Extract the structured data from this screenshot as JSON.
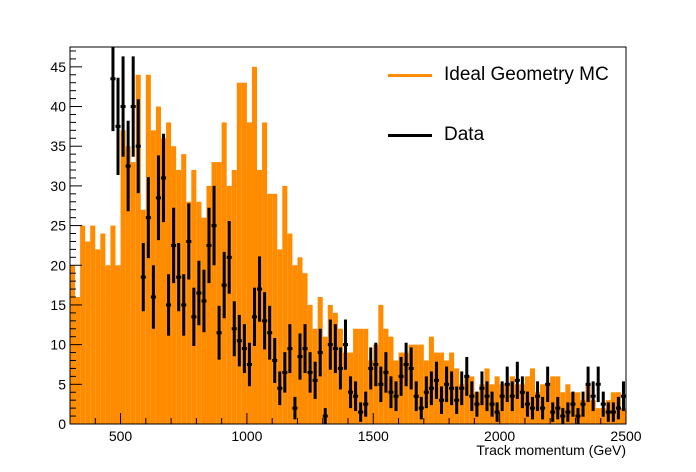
{
  "chart_data": {
    "type": "bar",
    "title": "",
    "xlabel": "Track momentum (GeV)",
    "ylabel": "",
    "xlim": [
      300,
      2500
    ],
    "ylim": [
      0,
      47.5
    ],
    "bin_width": 20,
    "x_ticks": [
      500,
      1000,
      1500,
      2000,
      2500
    ],
    "y_ticks": [
      0,
      5,
      10,
      15,
      20,
      25,
      30,
      35,
      40,
      45
    ],
    "grid": false,
    "legend_position": "top-right",
    "series": [
      {
        "name": "Ideal Geometry MC",
        "kind": "histogram",
        "color": "#ff8c00",
        "bin_edges_start": 300,
        "values": [
          20,
          16,
          25,
          23,
          25,
          22,
          24,
          20,
          25,
          20,
          37,
          35,
          33,
          44,
          27,
          44,
          37,
          40,
          36,
          38,
          35,
          32,
          34,
          28,
          32,
          28,
          26,
          30,
          33,
          33,
          38,
          30,
          32,
          43,
          43,
          38,
          45,
          32,
          38,
          29,
          29,
          22,
          30,
          24,
          20,
          21,
          19,
          15,
          12,
          16,
          11,
          15,
          14,
          12,
          9,
          9,
          12,
          12,
          12,
          8,
          10,
          15,
          12,
          11,
          8,
          9,
          9,
          10,
          10,
          10,
          8,
          11,
          9,
          9,
          8,
          9,
          7,
          5,
          6,
          6,
          4,
          5,
          7,
          5,
          6,
          5,
          5,
          6,
          5,
          5,
          6,
          7,
          4,
          5,
          5,
          6,
          6,
          4,
          5,
          4,
          4,
          3,
          5,
          3,
          2,
          2,
          3,
          4,
          4,
          2,
          1,
          1
        ]
      },
      {
        "name": "Data",
        "kind": "points-with-errors",
        "color": "#000000",
        "points": [
          {
            "x": 470,
            "y": 43.5
          },
          {
            "x": 490,
            "y": 37.5
          },
          {
            "x": 510,
            "y": 40
          },
          {
            "x": 530,
            "y": 32.5
          },
          {
            "x": 550,
            "y": 40
          },
          {
            "x": 570,
            "y": 35
          },
          {
            "x": 590,
            "y": 18.5
          },
          {
            "x": 610,
            "y": 26
          },
          {
            "x": 630,
            "y": 16
          },
          {
            "x": 650,
            "y": 28.5
          },
          {
            "x": 670,
            "y": 31
          },
          {
            "x": 690,
            "y": 15
          },
          {
            "x": 710,
            "y": 22.5
          },
          {
            "x": 730,
            "y": 18.5
          },
          {
            "x": 750,
            "y": 15
          },
          {
            "x": 770,
            "y": 23
          },
          {
            "x": 790,
            "y": 13.5
          },
          {
            "x": 810,
            "y": 16.5
          },
          {
            "x": 830,
            "y": 15.5
          },
          {
            "x": 850,
            "y": 22.5
          },
          {
            "x": 870,
            "y": 25
          },
          {
            "x": 890,
            "y": 11.5
          },
          {
            "x": 910,
            "y": 17.5
          },
          {
            "x": 930,
            "y": 21
          },
          {
            "x": 950,
            "y": 12
          },
          {
            "x": 970,
            "y": 10.5
          },
          {
            "x": 990,
            "y": 9.5
          },
          {
            "x": 1010,
            "y": 7.5
          },
          {
            "x": 1030,
            "y": 13.5
          },
          {
            "x": 1050,
            "y": 17
          },
          {
            "x": 1070,
            "y": 13
          },
          {
            "x": 1090,
            "y": 11.5
          },
          {
            "x": 1110,
            "y": 8
          },
          {
            "x": 1130,
            "y": 4.5
          },
          {
            "x": 1150,
            "y": 6.5
          },
          {
            "x": 1170,
            "y": 9.5
          },
          {
            "x": 1190,
            "y": 2
          },
          {
            "x": 1210,
            "y": 8.5
          },
          {
            "x": 1230,
            "y": 9.5
          },
          {
            "x": 1250,
            "y": 6.5
          },
          {
            "x": 1270,
            "y": 5.5
          },
          {
            "x": 1290,
            "y": 9
          },
          {
            "x": 1310,
            "y": 1
          },
          {
            "x": 1330,
            "y": 10
          },
          {
            "x": 1350,
            "y": 9.5
          },
          {
            "x": 1370,
            "y": 7
          },
          {
            "x": 1390,
            "y": 10
          },
          {
            "x": 1410,
            "y": 4
          },
          {
            "x": 1430,
            "y": 3.5
          },
          {
            "x": 1450,
            "y": 1.5
          },
          {
            "x": 1470,
            "y": 2.5
          },
          {
            "x": 1490,
            "y": 7
          },
          {
            "x": 1510,
            "y": 7.5
          },
          {
            "x": 1530,
            "y": 5
          },
          {
            "x": 1550,
            "y": 6.5
          },
          {
            "x": 1570,
            "y": 4
          },
          {
            "x": 1590,
            "y": 3.5
          },
          {
            "x": 1610,
            "y": 6
          },
          {
            "x": 1630,
            "y": 7.5
          },
          {
            "x": 1650,
            "y": 7
          },
          {
            "x": 1670,
            "y": 3.5
          },
          {
            "x": 1690,
            "y": 2
          },
          {
            "x": 1710,
            "y": 4
          },
          {
            "x": 1730,
            "y": 4.5
          },
          {
            "x": 1750,
            "y": 5.5
          },
          {
            "x": 1770,
            "y": 3
          },
          {
            "x": 1790,
            "y": 5
          },
          {
            "x": 1810,
            "y": 4.5
          },
          {
            "x": 1830,
            "y": 3
          },
          {
            "x": 1850,
            "y": 4.5
          },
          {
            "x": 1870,
            "y": 6
          },
          {
            "x": 1890,
            "y": 3.5
          },
          {
            "x": 1910,
            "y": 2.5
          },
          {
            "x": 1930,
            "y": 4.5
          },
          {
            "x": 1950,
            "y": 3.5
          },
          {
            "x": 1970,
            "y": 2.5
          },
          {
            "x": 1990,
            "y": 1.5
          },
          {
            "x": 2010,
            "y": 3.5
          },
          {
            "x": 2030,
            "y": 5
          },
          {
            "x": 2050,
            "y": 3.5
          },
          {
            "x": 2070,
            "y": 5.5
          },
          {
            "x": 2090,
            "y": 4
          },
          {
            "x": 2110,
            "y": 2.5
          },
          {
            "x": 2130,
            "y": 2
          },
          {
            "x": 2150,
            "y": 3.5
          },
          {
            "x": 2170,
            "y": 2
          },
          {
            "x": 2190,
            "y": 5
          },
          {
            "x": 2210,
            "y": 1.5
          },
          {
            "x": 2230,
            "y": 2
          },
          {
            "x": 2250,
            "y": 1
          },
          {
            "x": 2270,
            "y": 1.5
          },
          {
            "x": 2290,
            "y": 2.5
          },
          {
            "x": 2310,
            "y": 1
          },
          {
            "x": 2330,
            "y": 2.5
          },
          {
            "x": 2350,
            "y": 5
          },
          {
            "x": 2370,
            "y": 3.5
          },
          {
            "x": 2390,
            "y": 5
          },
          {
            "x": 2410,
            "y": 2.5
          },
          {
            "x": 2430,
            "y": 1.5
          },
          {
            "x": 2450,
            "y": 1.5
          },
          {
            "x": 2470,
            "y": 2
          },
          {
            "x": 2490,
            "y": 3.5
          }
        ]
      }
    ]
  }
}
